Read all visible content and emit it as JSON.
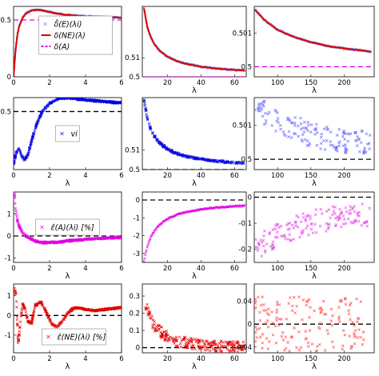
{
  "figure": {
    "rows": 4,
    "cols": 3
  },
  "chart_data": [
    {
      "type": "line",
      "row": 0,
      "col": 0,
      "xlabel": "",
      "xlim": [
        0,
        6
      ],
      "ylim": [
        0,
        0.62
      ],
      "xticks": [
        0,
        2,
        4,
        6
      ],
      "xticklabels": [
        "0",
        "2",
        "4",
        "6"
      ],
      "yticks": [
        0,
        0.5
      ],
      "yticklabels": [
        "0",
        "0.5"
      ],
      "legend": {
        "position": "center",
        "entries": [
          {
            "label": "δ̂(E)(λi)",
            "color": "#8080c0",
            "style": "marker"
          },
          {
            "label": "δ(NE)(λ)",
            "color": "#e00000",
            "style": "line"
          },
          {
            "label": "δ(A)",
            "color": "#e000e0",
            "style": "dashed"
          }
        ]
      },
      "hline": {
        "y": 0.5,
        "color": "#e000e0",
        "dash": "6,4"
      },
      "series": [
        {
          "name": "δ(NE)(λ)",
          "color": "#e00000",
          "x": [
            0,
            0.1,
            0.2,
            0.3,
            0.5,
            0.7,
            1.0,
            1.3,
            1.6,
            2.0,
            2.5,
            3.0,
            4.0,
            5.0,
            6.0
          ],
          "y": [
            0,
            0.22,
            0.36,
            0.44,
            0.52,
            0.56,
            0.585,
            0.59,
            0.585,
            0.57,
            0.555,
            0.545,
            0.532,
            0.525,
            0.52
          ]
        }
      ]
    },
    {
      "type": "line",
      "row": 0,
      "col": 1,
      "xlabel": "λ",
      "xlim": [
        5,
        67
      ],
      "ylim": [
        0.5,
        0.537
      ],
      "xticks": [
        20,
        40,
        60
      ],
      "xticklabels": [
        "20",
        "40",
        "60"
      ],
      "yticks": [
        0.5,
        0.51
      ],
      "yticklabels": [
        "0.5",
        "0.51"
      ],
      "hline": {
        "y": 0.5,
        "color": "#e000e0",
        "dash": "6,4"
      },
      "series": [
        {
          "name": "δ(NE)(λ)",
          "color": "#e00000",
          "x": [
            6,
            8,
            10,
            12,
            15,
            20,
            25,
            30,
            40,
            50,
            60,
            66
          ],
          "y": [
            0.536,
            0.526,
            0.521,
            0.5175,
            0.514,
            0.5105,
            0.5085,
            0.507,
            0.5053,
            0.5043,
            0.5036,
            0.5033
          ]
        }
      ]
    },
    {
      "type": "line",
      "row": 0,
      "col": 2,
      "xlabel": "λ",
      "xlim": [
        65,
        245
      ],
      "ylim": [
        0.4997,
        0.5018
      ],
      "xticks": [
        100,
        150,
        200
      ],
      "xticklabels": [
        "100",
        "150",
        "200"
      ],
      "yticks": [
        0.5,
        0.501
      ],
      "yticklabels": [
        "0.5",
        "0.501"
      ],
      "hline": {
        "y": 0.5,
        "color": "#e000e0",
        "dash": "6,4"
      },
      "series": [
        {
          "name": "δ(NE)(λ)",
          "color": "#e00000",
          "x": [
            66,
            80,
            100,
            120,
            150,
            180,
            210,
            240
          ],
          "y": [
            0.5017,
            0.5014,
            0.5011,
            0.50092,
            0.50073,
            0.5006,
            0.50052,
            0.50045
          ]
        }
      ]
    },
    {
      "type": "line",
      "row": 1,
      "col": 0,
      "xlabel": "λ",
      "xlim": [
        0,
        6
      ],
      "ylim": [
        0,
        0.62
      ],
      "xticks": [
        0,
        2,
        4,
        6
      ],
      "xticklabels": [
        "0",
        "2",
        "4",
        "6"
      ],
      "yticks": [
        0.5
      ],
      "yticklabels": [
        "0.5"
      ],
      "legend": {
        "position": "center",
        "entries": [
          {
            "label": "vi",
            "color": "#0000e0",
            "style": "marker"
          }
        ]
      },
      "hline": {
        "y": 0.5,
        "color": "#000000",
        "dash": "6,4"
      },
      "series": [
        {
          "name": "vi",
          "color": "#0000e0",
          "x": [
            0,
            0.15,
            0.3,
            0.45,
            0.6,
            0.8,
            1.0,
            1.3,
            1.6,
            2.0,
            2.5,
            3.0,
            3.5,
            4.0,
            5.0,
            6.0
          ],
          "y": [
            0.05,
            0.15,
            0.18,
            0.12,
            0.08,
            0.13,
            0.25,
            0.4,
            0.5,
            0.57,
            0.61,
            0.62,
            0.61,
            0.6,
            0.585,
            0.575
          ]
        }
      ]
    },
    {
      "type": "scatter",
      "row": 1,
      "col": 1,
      "xlabel": "λ",
      "xlim": [
        5,
        67
      ],
      "ylim": [
        0.5,
        0.537
      ],
      "xticks": [
        20,
        40,
        60
      ],
      "xticklabels": [
        "20",
        "40",
        "60"
      ],
      "yticks": [
        0.5,
        0.51
      ],
      "yticklabels": [
        "0.5",
        "0.51"
      ],
      "hline": {
        "y": 0.5,
        "color": "#000000",
        "dash": "6,4"
      },
      "series": [
        {
          "name": "vi",
          "color": "#0000e0",
          "x": [
            6,
            8,
            10,
            12,
            15,
            20,
            25,
            30,
            40,
            50,
            60,
            66
          ],
          "y": [
            0.536,
            0.526,
            0.521,
            0.5175,
            0.514,
            0.5105,
            0.5085,
            0.507,
            0.5053,
            0.5043,
            0.5036,
            0.5033
          ]
        }
      ]
    },
    {
      "type": "scatter",
      "row": 1,
      "col": 2,
      "xlabel": "λ",
      "xlim": [
        65,
        245
      ],
      "ylim": [
        0.4997,
        0.5018
      ],
      "xticks": [
        100,
        150,
        200
      ],
      "xticklabels": [
        "100",
        "150",
        "200"
      ],
      "yticks": [
        0.5,
        0.501
      ],
      "yticklabels": [
        "0.5",
        "0.501"
      ],
      "hline": {
        "y": 0.5,
        "color": "#000000",
        "dash": "6,4"
      },
      "series": [
        {
          "name": "vi",
          "color": "#6060ff",
          "x": [
            66,
            80,
            100,
            120,
            150,
            180,
            210,
            240
          ],
          "y": [
            0.5017,
            0.5014,
            0.5011,
            0.50092,
            0.50073,
            0.5006,
            0.50052,
            0.50045
          ]
        }
      ]
    },
    {
      "type": "line",
      "row": 2,
      "col": 0,
      "xlabel": "λ",
      "xlim": [
        0,
        6
      ],
      "ylim": [
        -1.2,
        2.0
      ],
      "xticks": [
        0,
        2,
        4,
        6
      ],
      "xticklabels": [
        "0",
        "2",
        "4",
        "6"
      ],
      "yticks": [
        -1,
        0,
        1
      ],
      "yticklabels": [
        "-1",
        "0",
        "1"
      ],
      "legend": {
        "position": "center",
        "entries": [
          {
            "label": "ε̂(A)(λi) [%]",
            "color": "#e000e0",
            "style": "marker"
          }
        ]
      },
      "hline": {
        "y": 0,
        "color": "#000000",
        "dash": "6,4"
      },
      "series": [
        {
          "name": "ε̂(A)(λi)",
          "color": "#e000e0",
          "x": [
            0.05,
            0.1,
            0.2,
            0.3,
            0.5,
            0.7,
            1.0,
            1.3,
            1.6,
            2.0,
            2.5,
            3.0,
            4.0,
            5.0,
            6.0
          ],
          "y": [
            2.0,
            1.3,
            0.75,
            0.45,
            0.15,
            0.0,
            -0.15,
            -0.25,
            -0.3,
            -0.3,
            -0.28,
            -0.22,
            -0.15,
            -0.1,
            -0.06
          ]
        }
      ]
    },
    {
      "type": "line",
      "row": 2,
      "col": 1,
      "xlabel": "λ",
      "xlim": [
        5,
        67
      ],
      "ylim": [
        -3.5,
        0.45
      ],
      "xticks": [
        20,
        40,
        60
      ],
      "xticklabels": [
        "20",
        "40",
        "60"
      ],
      "yticks": [
        -3,
        -2,
        -1,
        0
      ],
      "yticklabels": [
        "-3",
        "-2",
        "-1",
        "0"
      ],
      "hline": {
        "y": 0,
        "color": "#000000",
        "dash": "6,4"
      },
      "series": [
        {
          "name": "ε̂(A)(λi)",
          "color": "#e000e0",
          "x": [
            6,
            8,
            10,
            12,
            15,
            20,
            25,
            30,
            40,
            50,
            60,
            66
          ],
          "y": [
            -3.4,
            -2.6,
            -2.1,
            -1.75,
            -1.4,
            -1.05,
            -0.85,
            -0.7,
            -0.52,
            -0.42,
            -0.35,
            -0.32
          ]
        }
      ]
    },
    {
      "type": "scatter",
      "row": 2,
      "col": 2,
      "xlabel": "λ",
      "xlim": [
        65,
        245
      ],
      "ylim": [
        -0.25,
        0.02
      ],
      "xticks": [
        100,
        150,
        200
      ],
      "xticklabels": [
        "100",
        "150",
        "200"
      ],
      "yticks": [
        -0.2,
        -0.1,
        0
      ],
      "yticklabels": [
        "-0.2",
        "-0.1",
        "0"
      ],
      "hline": {
        "y": 0,
        "color": "#000000",
        "dash": "6,4"
      },
      "series": [
        {
          "name": "ε̂(A)(λi)",
          "color": "#e040e0",
          "x": [
            66,
            80,
            100,
            120,
            150,
            180,
            210,
            240
          ],
          "y": [
            -0.2,
            -0.17,
            -0.14,
            -0.12,
            -0.1,
            -0.085,
            -0.075,
            -0.07
          ]
        }
      ]
    },
    {
      "type": "line",
      "row": 3,
      "col": 0,
      "xlabel": "λ",
      "xlim": [
        0,
        6
      ],
      "ylim": [
        -1.9,
        1.6
      ],
      "xticks": [
        0,
        2,
        4,
        6
      ],
      "xticklabels": [
        "0",
        "2",
        "4",
        "6"
      ],
      "yticks": [
        -1,
        0,
        1
      ],
      "yticklabels": [
        "-1",
        "0",
        "1"
      ],
      "legend": {
        "position": "bottom-center",
        "entries": [
          {
            "label": "ε̂(NE)(λi) [%]",
            "color": "#e00000",
            "style": "marker"
          }
        ]
      },
      "hline": {
        "y": 0,
        "color": "#000000",
        "dash": "6,4"
      },
      "series": [
        {
          "name": "ε̂(NE)(λi)",
          "color": "#e00000",
          "x": [
            0.05,
            0.15,
            0.25,
            0.35,
            0.5,
            0.65,
            0.8,
            1.0,
            1.2,
            1.5,
            1.8,
            2.1,
            2.4,
            2.7,
            3.0,
            3.3,
            3.6,
            4.0,
            4.5,
            5.0,
            5.5,
            6.0
          ],
          "y": [
            1.4,
            1.0,
            -1.5,
            -0.6,
            0.6,
            0.3,
            -0.3,
            -0.4,
            0.5,
            0.7,
            0.2,
            -0.4,
            -0.6,
            -0.3,
            0.1,
            0.35,
            0.4,
            0.3,
            0.25,
            0.3,
            0.35,
            0.4
          ]
        }
      ]
    },
    {
      "type": "scatter",
      "row": 3,
      "col": 1,
      "xlabel": "λ",
      "xlim": [
        5,
        67
      ],
      "ylim": [
        -0.03,
        0.37
      ],
      "xticks": [
        20,
        40,
        60
      ],
      "xticklabels": [
        "20",
        "40",
        "60"
      ],
      "yticks": [
        0,
        0.1,
        0.2,
        0.3
      ],
      "yticklabels": [
        "0",
        "0.1",
        "0.2",
        "0.3"
      ],
      "hline": {
        "y": 0,
        "color": "#000000",
        "dash": "6,4"
      },
      "series": [
        {
          "name": "ε̂(NE)(λi)",
          "color": "#e00000",
          "x": [
            6,
            8,
            10,
            12,
            15,
            20,
            25,
            30,
            40,
            50,
            60,
            66
          ],
          "y": [
            0.3,
            0.22,
            0.17,
            0.13,
            0.1,
            0.06,
            0.04,
            0.03,
            0.015,
            0.008,
            0.005,
            0.004
          ]
        }
      ]
    },
    {
      "type": "scatter",
      "row": 3,
      "col": 2,
      "xlabel": "λ",
      "xlim": [
        65,
        245
      ],
      "ylim": [
        -0.05,
        0.07
      ],
      "xticks": [
        100,
        150,
        200
      ],
      "xticklabels": [
        "100",
        "150",
        "200"
      ],
      "yticks": [
        -0.04,
        0,
        0.04
      ],
      "yticklabels": [
        "-0.04",
        "0",
        "0.04"
      ],
      "hline": {
        "y": 0,
        "color": "#000000",
        "dash": "6,4"
      },
      "series": [
        {
          "name": "ε̂(NE)(λi)",
          "color": "#ff4040",
          "x": [
            66,
            100,
            150,
            200,
            240
          ],
          "y": [
            0,
            0,
            0,
            0,
            0
          ]
        }
      ]
    }
  ]
}
